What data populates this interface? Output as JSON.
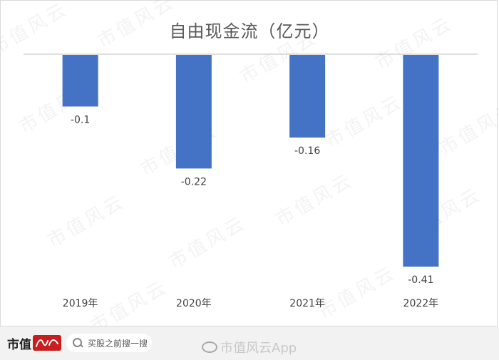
{
  "chart_data": {
    "type": "bar",
    "title": "自由现金流（亿元）",
    "categories": [
      "2019年",
      "2020年",
      "2021年",
      "2022年"
    ],
    "values": [
      -0.1,
      -0.22,
      -0.16,
      -0.41
    ],
    "data_labels": [
      "-0.1",
      "-0.22",
      "-0.16",
      "-0.41"
    ],
    "ylim": [
      -0.41,
      0
    ],
    "bar_color": "#4472C4",
    "axis_color": "#bfbfbf",
    "grid": false,
    "legend": "none"
  },
  "watermark": {
    "text": "市值风云"
  },
  "footer": {
    "logo_text": "市值",
    "logo_mark_text": "风云",
    "search_placeholder": "买股之前搜一搜",
    "weibo_text": "市值风云App"
  }
}
